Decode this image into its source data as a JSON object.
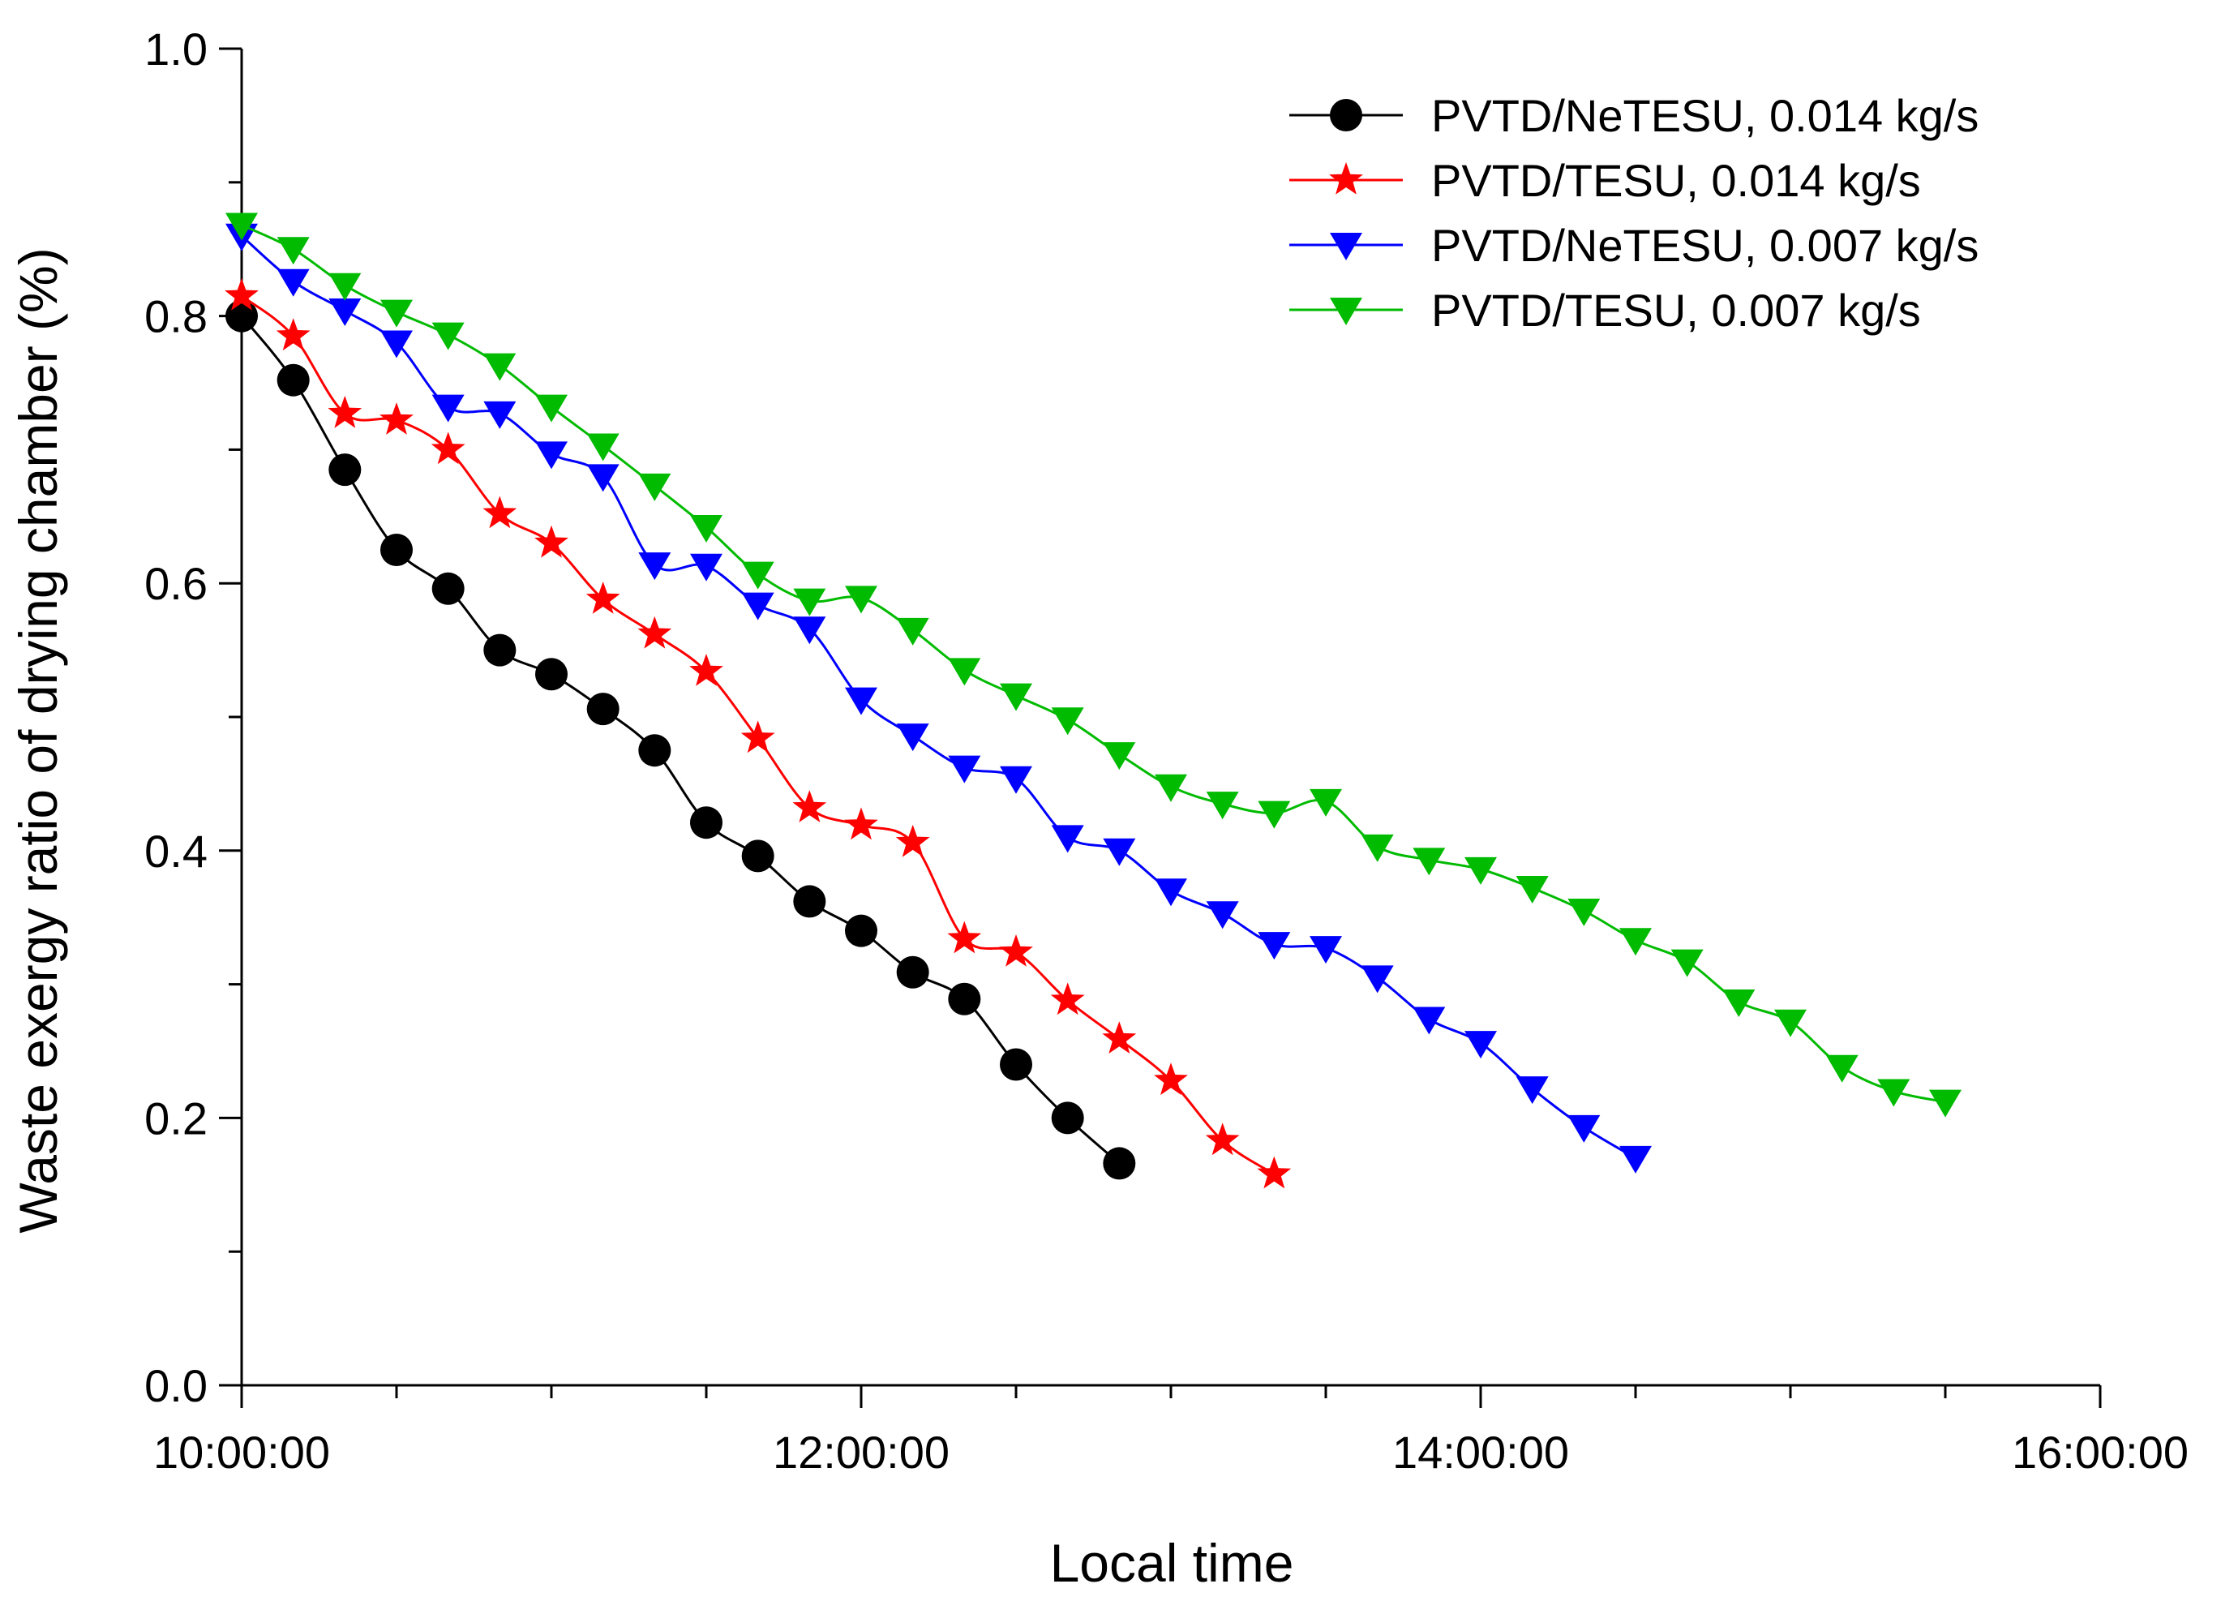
{
  "chart_data": {
    "type": "line",
    "title": "",
    "xlabel": "Local time",
    "ylabel": "Waste exergy ratio of drying chamber (%)",
    "xlim": [
      0,
      6
    ],
    "ylim": [
      0,
      1.0
    ],
    "x_unit": "hours after 10:00:00",
    "x_major_ticks": [
      0,
      2,
      4,
      6
    ],
    "x_tick_labels": [
      "10:00:00",
      "12:00:00",
      "14:00:00",
      "16:00:00"
    ],
    "x_minor_step": 0.5,
    "y_major_ticks": [
      0.0,
      0.2,
      0.4,
      0.6,
      0.8,
      1.0
    ],
    "y_tick_labels": [
      "0.0",
      "0.2",
      "0.4",
      "0.6",
      "0.8",
      "1.0"
    ],
    "y_minor_step": 0.1,
    "grid": false,
    "legend_position": "top-right",
    "series": [
      {
        "name": "PVTD/NeTESU, 0.014 kg/s",
        "color": "#000000",
        "marker": "circle",
        "x": [
          0,
          0.1667,
          0.3333,
          0.5,
          0.6667,
          0.8333,
          1.0,
          1.1667,
          1.3333,
          1.5,
          1.6667,
          1.8333,
          2.0,
          2.1667,
          2.3333,
          2.5,
          2.6667,
          2.8333
        ],
        "values": [
          0.8,
          0.752,
          0.685,
          0.625,
          0.596,
          0.55,
          0.532,
          0.506,
          0.475,
          0.421,
          0.396,
          0.362,
          0.34,
          0.309,
          0.289,
          0.24,
          0.2,
          0.166
        ]
      },
      {
        "name": "PVTD/TESU, 0.014 kg/s",
        "color": "#ff0000",
        "marker": "star",
        "x": [
          0,
          0.1667,
          0.3333,
          0.5,
          0.6667,
          0.8333,
          1.0,
          1.1667,
          1.3333,
          1.5,
          1.6667,
          1.8333,
          2.0,
          2.1667,
          2.3333,
          2.5,
          2.6667,
          2.8333,
          3.0,
          3.1667,
          3.3333
        ],
        "values": [
          0.815,
          0.785,
          0.727,
          0.722,
          0.7,
          0.652,
          0.63,
          0.588,
          0.562,
          0.534,
          0.484,
          0.432,
          0.419,
          0.406,
          0.334,
          0.324,
          0.288,
          0.259,
          0.228,
          0.183,
          0.158
        ]
      },
      {
        "name": "PVTD/NeTESU, 0.007 kg/s",
        "color": "#0000ff",
        "marker": "triangle-down",
        "x": [
          0,
          0.1667,
          0.3333,
          0.5,
          0.6667,
          0.8333,
          1.0,
          1.1667,
          1.3333,
          1.5,
          1.6667,
          1.8333,
          2.0,
          2.1667,
          2.3333,
          2.5,
          2.6667,
          2.8333,
          3.0,
          3.1667,
          3.3333,
          3.5,
          3.6667,
          3.8333,
          4.0,
          4.1667,
          4.3333,
          4.5
        ],
        "values": [
          0.86,
          0.826,
          0.804,
          0.78,
          0.732,
          0.727,
          0.697,
          0.68,
          0.614,
          0.613,
          0.584,
          0.566,
          0.513,
          0.486,
          0.462,
          0.454,
          0.41,
          0.4,
          0.37,
          0.353,
          0.33,
          0.327,
          0.305,
          0.274,
          0.256,
          0.222,
          0.193,
          0.17
        ]
      },
      {
        "name": "PVTD/TESU, 0.007 kg/s",
        "color": "#00bb00",
        "marker": "triangle-down",
        "x": [
          0,
          0.1667,
          0.3333,
          0.5,
          0.6667,
          0.8333,
          1.0,
          1.1667,
          1.3333,
          1.5,
          1.6667,
          1.8333,
          2.0,
          2.1667,
          2.3333,
          2.5,
          2.6667,
          2.8333,
          3.0,
          3.1667,
          3.3333,
          3.5,
          3.6667,
          3.8333,
          4.0,
          4.1667,
          4.3333,
          4.5,
          4.6667,
          4.8333,
          5.0,
          5.1667,
          5.3333,
          5.5
        ],
        "values": [
          0.868,
          0.85,
          0.823,
          0.803,
          0.786,
          0.763,
          0.732,
          0.703,
          0.673,
          0.642,
          0.607,
          0.587,
          0.589,
          0.565,
          0.535,
          0.516,
          0.498,
          0.472,
          0.448,
          0.435,
          0.428,
          0.437,
          0.403,
          0.393,
          0.386,
          0.372,
          0.355,
          0.333,
          0.317,
          0.287,
          0.272,
          0.238,
          0.22,
          0.212
        ]
      }
    ]
  }
}
